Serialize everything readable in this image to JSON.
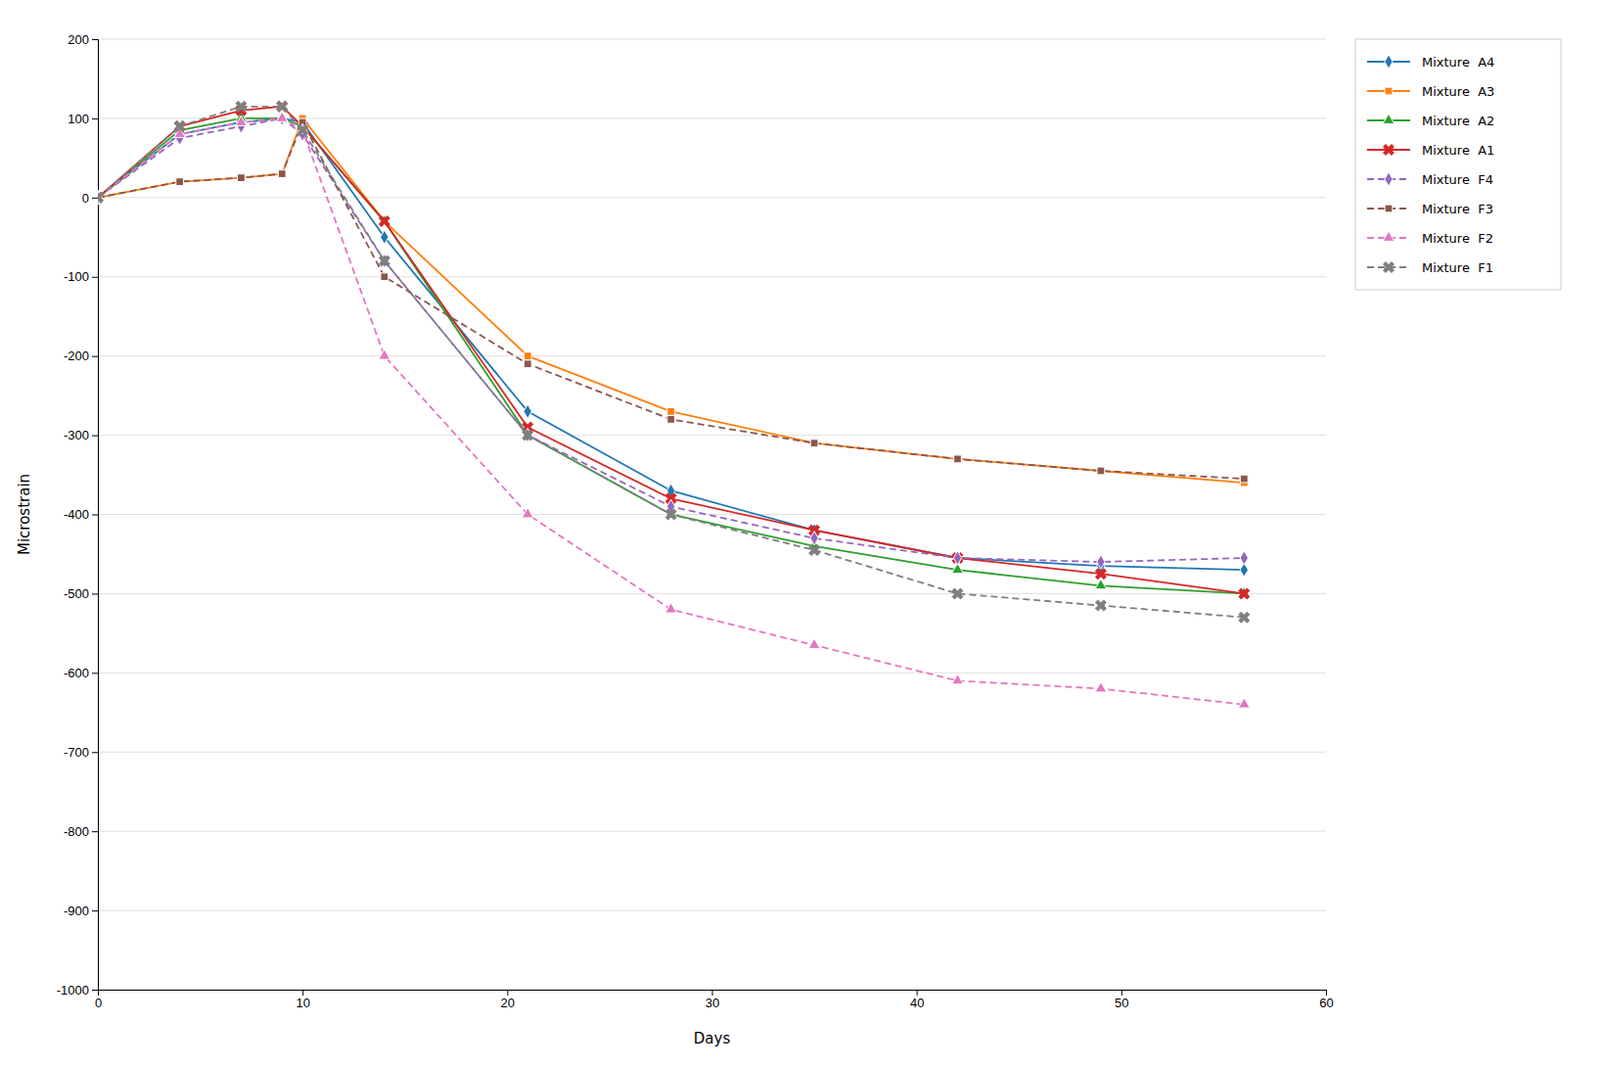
{
  "chart_data": {
    "type": "line",
    "xlabel": "Days",
    "ylabel": "Microstrain",
    "xlim": [
      0,
      60
    ],
    "ylim": [
      -1000,
      200
    ],
    "xticks": [
      0,
      10,
      20,
      30,
      40,
      50,
      60
    ],
    "yticks": [
      200,
      100,
      0,
      -100,
      -200,
      -300,
      -400,
      -500,
      -600,
      -700,
      -800,
      -900,
      -1000
    ],
    "grid": true,
    "legend": "right",
    "x": [
      0,
      4,
      7,
      9,
      10,
      14,
      21,
      28,
      35,
      42,
      49,
      56
    ],
    "series": [
      {
        "name": "Mixture  A4",
        "marker": "diamond",
        "line_style": "solid",
        "values": [
          0,
          80,
          95,
          100,
          95,
          -50,
          -270,
          -370,
          -420,
          -455,
          -465,
          -470
        ]
      },
      {
        "name": "Mixture  A3",
        "marker": "square",
        "line_style": "solid",
        "values": [
          0,
          20,
          25,
          30,
          100,
          -30,
          -200,
          -270,
          -310,
          -330,
          -345,
          -360
        ]
      },
      {
        "name": "Mixture  A2",
        "marker": "triangle",
        "line_style": "solid",
        "values": [
          0,
          85,
          100,
          100,
          90,
          -30,
          -300,
          -400,
          -440,
          -470,
          -490,
          -500
        ]
      },
      {
        "name": "Mixture  A1",
        "marker": "x",
        "line_style": "solid",
        "values": [
          0,
          90,
          110,
          115,
          90,
          -30,
          -290,
          -380,
          -420,
          -455,
          -475,
          -500
        ]
      },
      {
        "name": "Mixture  F4",
        "marker": "diamond",
        "line_style": "dashed",
        "values": [
          0,
          75,
          90,
          100,
          80,
          -80,
          -300,
          -390,
          -430,
          -455,
          -460,
          -455
        ]
      },
      {
        "name": "Mixture  F3",
        "marker": "square",
        "line_style": "dashed",
        "values": [
          0,
          20,
          25,
          30,
          95,
          -100,
          -210,
          -280,
          -310,
          -330,
          -345,
          -355
        ]
      },
      {
        "name": "Mixture  F2",
        "marker": "triangle",
        "line_style": "dashed",
        "values": [
          0,
          80,
          95,
          100,
          85,
          -200,
          -400,
          -520,
          -565,
          -610,
          -620,
          -640
        ]
      },
      {
        "name": "Mixture  F1",
        "marker": "x",
        "line_style": "dashed",
        "values": [
          0,
          90,
          115,
          115,
          85,
          -80,
          -300,
          -400,
          -445,
          -500,
          -515,
          -530
        ]
      }
    ]
  }
}
